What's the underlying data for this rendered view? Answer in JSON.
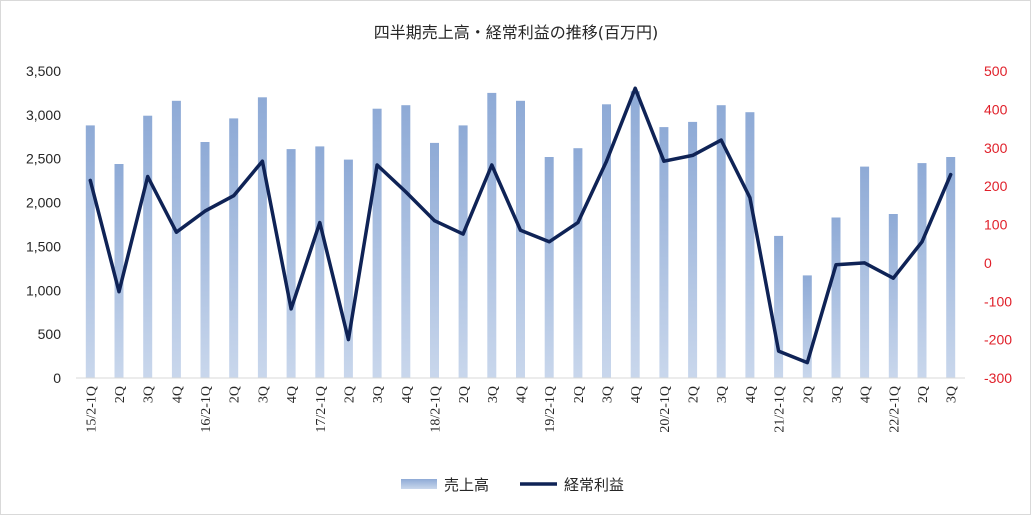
{
  "chart_data": {
    "type": "bar",
    "title": "四半期売上高・経常利益の推移(百万円)",
    "categories": [
      "15/2-1Q",
      "2Q",
      "3Q",
      "4Q",
      "16/2-1Q",
      "2Q",
      "3Q",
      "4Q",
      "17/2-1Q",
      "2Q",
      "3Q",
      "4Q",
      "18/2-1Q",
      "2Q",
      "3Q",
      "4Q",
      "19/2-1Q",
      "2Q",
      "3Q",
      "4Q",
      "20/2-1Q",
      "2Q",
      "3Q",
      "4Q",
      "21/2-1Q",
      "2Q",
      "3Q",
      "4Q",
      "22/2-1Q",
      "2Q",
      "3Q"
    ],
    "series": [
      {
        "name": "売上高",
        "type": "bar",
        "axis": "left",
        "color": "#a9bfdf",
        "values": [
          2880,
          2440,
          2990,
          3160,
          2690,
          2960,
          3200,
          2610,
          2640,
          2490,
          3070,
          3110,
          2680,
          2880,
          3250,
          3160,
          2520,
          2620,
          3120,
          3270,
          2860,
          2920,
          3110,
          3030,
          1620,
          1170,
          1830,
          2410,
          1870,
          2450,
          2520
        ]
      },
      {
        "name": "経常利益",
        "type": "line",
        "axis": "right",
        "color": "#0f2356",
        "values": [
          215,
          -75,
          225,
          80,
          135,
          175,
          265,
          -120,
          105,
          -200,
          255,
          185,
          110,
          75,
          255,
          85,
          55,
          105,
          265,
          455,
          265,
          280,
          320,
          170,
          -230,
          -260,
          -5,
          0,
          -40,
          55,
          230
        ]
      }
    ],
    "y_left": {
      "min": 0,
      "max": 3500,
      "ticks": [
        "0",
        "500",
        "1,000",
        "1,500",
        "2,000",
        "2,500",
        "3,000",
        "3,500"
      ]
    },
    "y_right": {
      "min": -300,
      "max": 500,
      "ticks": [
        "-300",
        "-200",
        "-100",
        "0",
        "100",
        "200",
        "300",
        "400",
        "500"
      ],
      "color": "#e0202a"
    },
    "grid": false,
    "legend_position": "bottom"
  }
}
